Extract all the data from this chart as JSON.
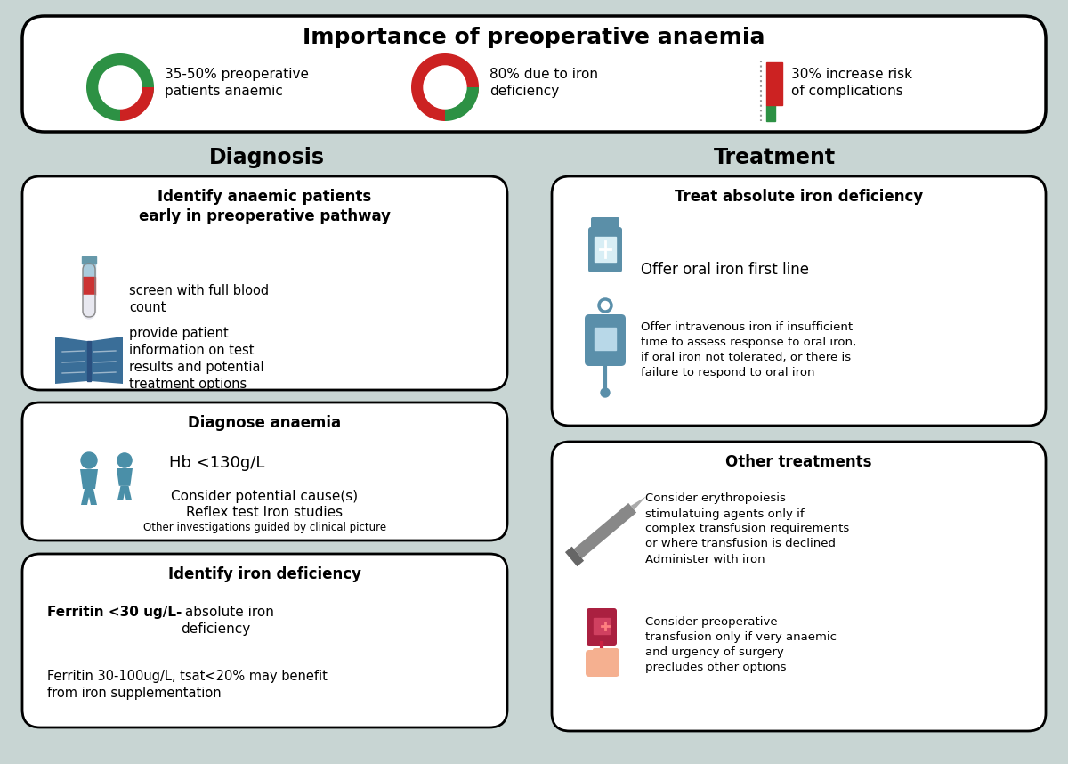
{
  "bg_color": "#c8d5d3",
  "title": "Importance of preoperative anaemia",
  "stat1_text": "35-50% preoperative\npatients anaemic",
  "stat2_text": "80% due to iron\ndeficiency",
  "stat3_text": "30% increase risk\nof complications",
  "diag_title": "Diagnosis",
  "treat_title": "Treatment",
  "box1_title": "Identify anaemic patients\nearly in preoperative pathway",
  "box1_item1": "screen with full blood\ncount",
  "box1_item2": "provide patient\ninformation on test\nresults and potential\ntreatment options",
  "box2_title": "Diagnose anaemia",
  "box2_hb": "Hb <130g/L",
  "box2_line1": "Consider potential cause(s)",
  "box2_line2": "Reflex test Iron studies",
  "box2_line3": "Other investigations guided by clinical picture",
  "box3_title": "Identify iron deficiency",
  "box3_bold": "Ferritin <30 ug/L-",
  "box3_normal": " absolute iron\ndeficiency",
  "box3_sub": "Ferritin 30-100ug/L, tsat<20% may benefit\nfrom iron supplementation",
  "tbox1_title": "Treat absolute iron deficiency",
  "tbox1_item1": "Offer oral iron first line",
  "tbox1_item2": "Offer intravenous iron if insufficient\ntime to assess response to oral iron,\nif oral iron not tolerated, or there is\nfailure to respond to oral iron",
  "tbox2_title": "Other treatments",
  "tbox2_item1": "Consider erythropoiesis\nstimulatuing agents only if\ncomplex transfusion requirements\nor where transfusion is declined\nAdminister with iron",
  "tbox2_item2": "Consider preoperative\ntransfusion only if very anaemic\nand urgency of surgery\nprecludes other options",
  "green": "#2d9144",
  "red": "#cc2222",
  "teal": "#4a8fa8",
  "dark": "#1a1a1a",
  "white": "#ffffff",
  "gray": "#888888",
  "syringe_color": "#888888",
  "blood_red": "#c03050",
  "skin_color": "#f5c4b0"
}
